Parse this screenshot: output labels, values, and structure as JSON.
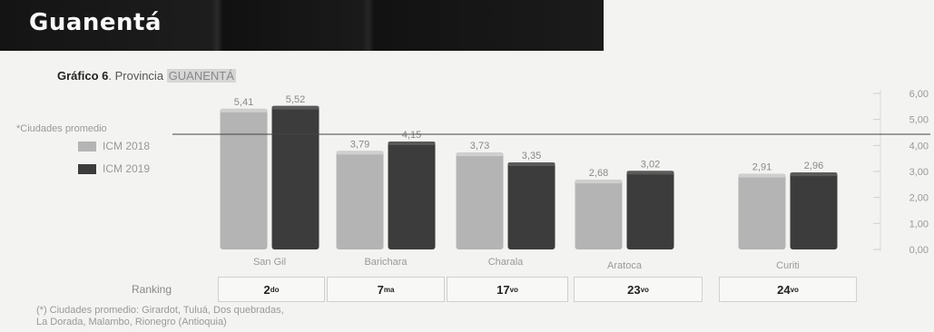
{
  "banner": {
    "title": "Guanentá"
  },
  "figure": {
    "label": "Gráfico 6",
    "separator": ". Provincia ",
    "highlight": "GUANENTÁ"
  },
  "legend": {
    "note": "*Ciudades promedio",
    "items": [
      {
        "label": "ICM 2018",
        "color": "#b4b4b4"
      },
      {
        "label": "ICM 2019",
        "color": "#3c3c3c"
      }
    ]
  },
  "ranking": {
    "label": "Ranking",
    "values": [
      {
        "num": "2",
        "sup": "do"
      },
      {
        "num": "7",
        "sup": "ma"
      },
      {
        "num": "17",
        "sup": "vo"
      },
      {
        "num": "23",
        "sup": "vo"
      },
      {
        "num": "24",
        "sup": "vo"
      }
    ]
  },
  "footnote": {
    "line1": "(*) Ciudades promedio: Girardot, Tuluá, Dos quebradas,",
    "line2": "La Dorada, Malambo, Rionegro (Antioquia)"
  },
  "chart_data": {
    "type": "bar",
    "categories": [
      "San Gil",
      "Barichara",
      "Charala",
      "Aratoca",
      "Curiti"
    ],
    "series": [
      {
        "name": "ICM 2018",
        "values": [
          5.41,
          3.79,
          3.73,
          2.68,
          2.91
        ],
        "labels": [
          "5,41",
          "3,79",
          "3,73",
          "2,68",
          "2,91"
        ],
        "color": "#b4b4b4"
      },
      {
        "name": "ICM 2019",
        "values": [
          5.52,
          4.15,
          3.35,
          3.02,
          2.96
        ],
        "labels": [
          "5,52",
          "4,15",
          "3,35",
          "3,02",
          "2,96"
        ],
        "color": "#3c3c3c"
      }
    ],
    "ylim": [
      0,
      6
    ],
    "yticks": [
      "0,00",
      "1,00",
      "2,00",
      "3,00",
      "4,00",
      "5,00",
      "6,00"
    ],
    "reference_line": 4.3,
    "legend_position": "left"
  }
}
